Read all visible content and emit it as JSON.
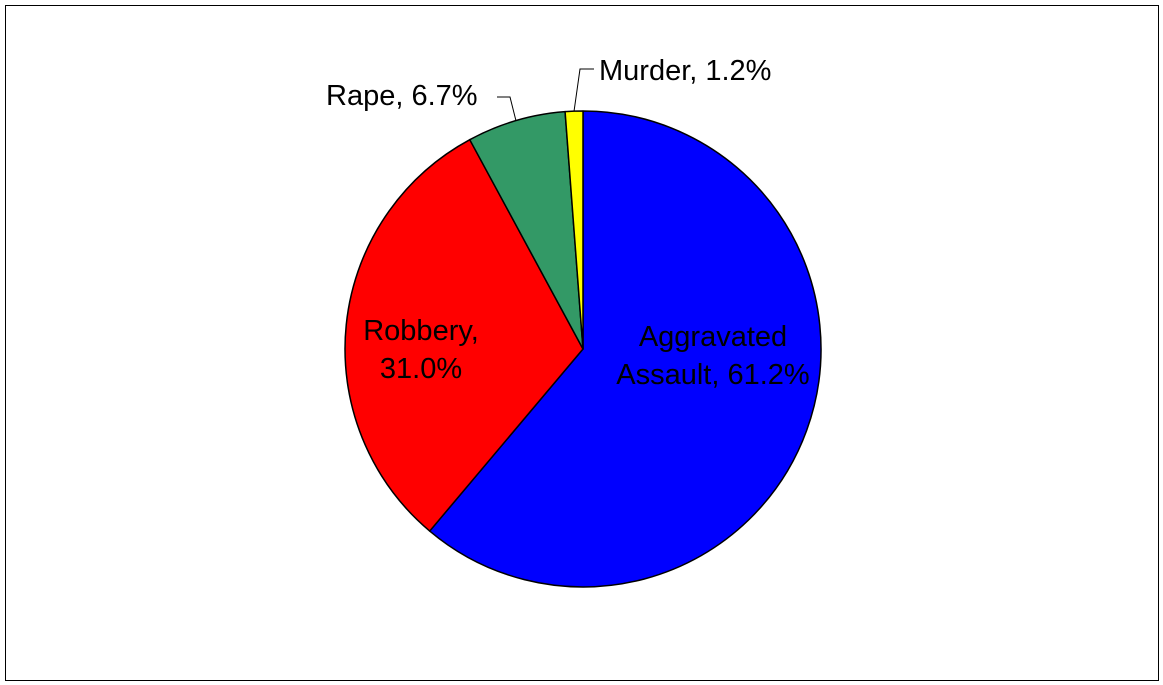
{
  "chart_data": {
    "type": "pie",
    "title": "",
    "legend": "none",
    "slices": [
      {
        "name": "Aggravated Assault",
        "value": 61.2,
        "color": "#0000ff",
        "label_lines": [
          "Aggravated",
          "Assault, 61.2%"
        ]
      },
      {
        "name": "Robbery",
        "value": 31.0,
        "color": "#ff0000",
        "label_lines": [
          "Robbery,",
          "31.0%"
        ]
      },
      {
        "name": "Rape",
        "value": 6.7,
        "color": "#339966",
        "label_lines": [
          "Rape, 6.7%"
        ]
      },
      {
        "name": "Murder",
        "value": 1.2,
        "color": "#ffff00",
        "label_lines": [
          "Murder, 1.2%"
        ]
      }
    ]
  }
}
